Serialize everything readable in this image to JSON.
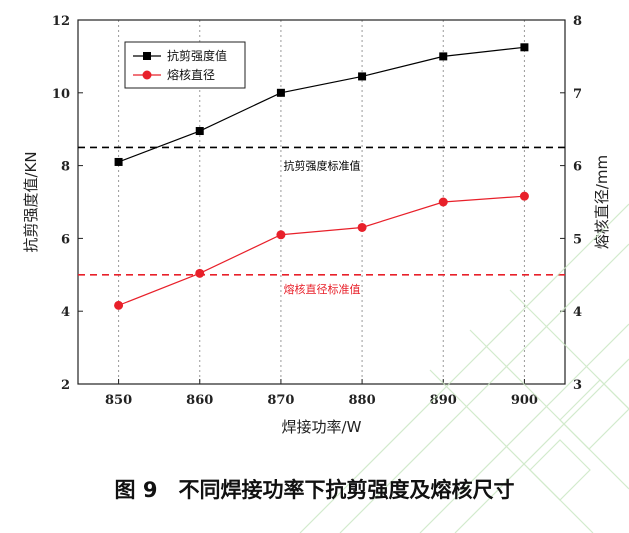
{
  "chart_data": {
    "type": "line",
    "x": [
      850,
      860,
      870,
      880,
      890,
      900
    ],
    "xlabel": "焊接功率/W",
    "xlim": [
      845,
      905
    ],
    "series": [
      {
        "name": "抗剪强度值",
        "axis": "left",
        "values": [
          8.1,
          8.95,
          10.0,
          10.45,
          11.0,
          11.25
        ],
        "color": "#000000",
        "marker": "square"
      },
      {
        "name": "熔核直径",
        "axis": "right",
        "values": [
          4.08,
          4.52,
          5.05,
          5.15,
          5.5,
          5.58
        ],
        "color": "#e8202a",
        "marker": "circle"
      }
    ],
    "y_left": {
      "label": "抗剪强度值/KN",
      "lim": [
        2,
        12
      ],
      "ticks": [
        2,
        4,
        6,
        8,
        10,
        12
      ]
    },
    "y_right": {
      "label": "熔核直径/mm",
      "lim": [
        3,
        8
      ],
      "ticks": [
        3,
        4,
        5,
        6,
        7,
        8
      ]
    },
    "xticks": [
      850,
      860,
      870,
      880,
      890,
      900
    ],
    "reference_lines": [
      {
        "label": "抗剪强度标准值",
        "axis": "left",
        "value": 8.5,
        "color": "#000000"
      },
      {
        "label": "熔核直径标准值",
        "axis": "left",
        "value": 5.0,
        "color": "#e8202a"
      }
    ],
    "legend_placement": "top-left",
    "grid": "vertical-dotted"
  },
  "caption": "图 9　不同焊接功率下抗剪强度及熔核尺寸"
}
